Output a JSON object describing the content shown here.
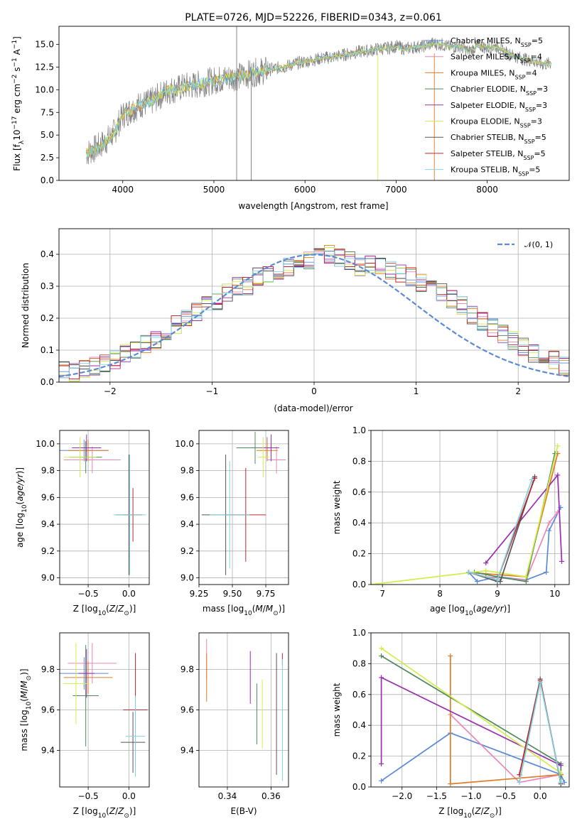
{
  "colors": {
    "Chabrier MILES": "#5b8ad6",
    "Salpeter MILES": "#e887b8",
    "Kroupa MILES": "#e07b27",
    "Chabrier ELODIE": "#4d8a5e",
    "Salpeter ELODIE": "#9b2db0",
    "Kroupa ELODIE": "#d4ec4a",
    "Chabrier STELIB": "#555555",
    "Salpeter STELIB": "#c0272d",
    "Kroupa STELIB": "#7fd3e0",
    "normal": "#5b8ad6",
    "data": "#808080"
  },
  "chart_data": [
    {
      "type": "line",
      "title": "PLATE=0726, MJD=52226, FIBERID=0343, z=0.061",
      "xlabel": "wavelength [Angstrom, rest frame]",
      "ylabel": "Flux [f",
      "xlim": [
        3300,
        8900
      ],
      "ylim": [
        0,
        17
      ],
      "xticks": [
        "4000",
        "5000",
        "6000",
        "7000",
        "8000"
      ],
      "yticks": [
        "0.0",
        "2.5",
        "5.0",
        "7.5",
        "10.0",
        "12.5",
        "15.0"
      ],
      "legend_position": "right",
      "legend": [
        {
          "name": "Chabrier MILES, N",
          "n": "=5"
        },
        {
          "name": "Salpeter MILES, N",
          "n": "=4"
        },
        {
          "name": "Kroupa MILES, N",
          "n": "=4"
        },
        {
          "name": "Chabrier ELODIE, N",
          "n": "=3"
        },
        {
          "name": "Salpeter ELODIE, N",
          "n": "=3"
        },
        {
          "name": "Kroupa ELODIE, N",
          "n": "=3"
        },
        {
          "name": "Chabrier STELIB, N",
          "n": "=5"
        },
        {
          "name": "Salpeter STELIB, N",
          "n": "=5"
        },
        {
          "name": "Kroupa STELIB, N",
          "n": "=5"
        }
      ],
      "legend_sub": "SSP",
      "spectrum_points": [
        [
          3600,
          3.0
        ],
        [
          3700,
          3.5
        ],
        [
          3800,
          4.2
        ],
        [
          3900,
          5.2
        ],
        [
          4000,
          7.2
        ],
        [
          4100,
          7.8
        ],
        [
          4200,
          8.4
        ],
        [
          4300,
          8.6
        ],
        [
          4400,
          9.3
        ],
        [
          4500,
          9.9
        ],
        [
          4600,
          10.1
        ],
        [
          4700,
          10.4
        ],
        [
          4800,
          10.5
        ],
        [
          4900,
          10.8
        ],
        [
          5000,
          11.0
        ],
        [
          5100,
          11.2
        ],
        [
          5200,
          11.4
        ],
        [
          5300,
          11.5
        ],
        [
          5400,
          11.8
        ],
        [
          5500,
          12.0
        ],
        [
          5600,
          12.2
        ],
        [
          5700,
          12.4
        ],
        [
          5800,
          12.6
        ],
        [
          5900,
          12.9
        ],
        [
          6000,
          13.1
        ],
        [
          6100,
          13.3
        ],
        [
          6200,
          13.5
        ],
        [
          6300,
          13.6
        ],
        [
          6400,
          13.8
        ],
        [
          6500,
          14.0
        ],
        [
          6600,
          14.2
        ],
        [
          6700,
          14.3
        ],
        [
          6800,
          14.5
        ],
        [
          6900,
          14.6
        ],
        [
          7000,
          14.8
        ],
        [
          7100,
          14.5
        ],
        [
          7200,
          14.7
        ],
        [
          7300,
          14.8
        ],
        [
          7400,
          15.1
        ],
        [
          7500,
          15.0
        ],
        [
          7600,
          14.7
        ],
        [
          7700,
          14.8
        ],
        [
          7800,
          14.2
        ],
        [
          7900,
          14.9
        ],
        [
          8000,
          14.6
        ],
        [
          8100,
          14.8
        ],
        [
          8200,
          14.1
        ],
        [
          8300,
          13.7
        ],
        [
          8400,
          13.4
        ],
        [
          8500,
          13.2
        ],
        [
          8600,
          12.8
        ],
        [
          8700,
          12.9
        ]
      ]
    },
    {
      "type": "bar",
      "xlabel": "(data-model)/error",
      "ylabel": "Normed distribution",
      "xlim": [
        -2.5,
        2.5
      ],
      "ylim": [
        0,
        0.48
      ],
      "xticks": [
        "−2",
        "−1",
        "0",
        "1",
        "2"
      ],
      "yticks": [
        "0.0",
        "0.1",
        "0.2",
        "0.3",
        "0.4"
      ],
      "legend": "𝒩(0, 1)",
      "bin_width": 0.1,
      "series": [
        {
          "key": "Chabrier MILES",
          "values": [
            0.04,
            0.03,
            0.04,
            0.05,
            0.06,
            0.07,
            0.09,
            0.1,
            0.12,
            0.13,
            0.16,
            0.18,
            0.2,
            0.22,
            0.24,
            0.25,
            0.28,
            0.3,
            0.3,
            0.33,
            0.34,
            0.35,
            0.36,
            0.37,
            0.38,
            0.39,
            0.4,
            0.39,
            0.38,
            0.36,
            0.37,
            0.36,
            0.35,
            0.34,
            0.33,
            0.31,
            0.3,
            0.28,
            0.26,
            0.24,
            0.21,
            0.19,
            0.17,
            0.15,
            0.13,
            0.11,
            0.09,
            0.08,
            0.07,
            0.05
          ]
        }
      ]
    },
    {
      "type": "scatter",
      "xlabel": "Z [log",
      "ylabel": "age  [log",
      "xlim": [
        -0.85,
        0.25
      ],
      "ylim": [
        8.95,
        10.1
      ],
      "xticks": [
        "−0.5",
        "0.0"
      ],
      "yticks": [
        "9.0",
        "9.2",
        "9.4",
        "9.6",
        "9.8",
        "10.0"
      ],
      "points": [
        {
          "key": "Chabrier MILES",
          "x": -0.55,
          "y": 9.95,
          "dx": 0.3,
          "dy": 0.08
        },
        {
          "key": "Salpeter MILES",
          "x": -0.45,
          "y": 9.88,
          "dx": 0.35,
          "dy": 0.1
        },
        {
          "key": "Kroupa MILES",
          "x": -0.5,
          "y": 9.95,
          "dx": 0.25,
          "dy": 0.08
        },
        {
          "key": "Chabrier ELODIE",
          "x": -0.53,
          "y": 9.9,
          "dx": 0.2,
          "dy": 0.12
        },
        {
          "key": "Salpeter ELODIE",
          "x": -0.52,
          "y": 9.97,
          "dx": 0.18,
          "dy": 0.1
        },
        {
          "key": "Kroupa ELODIE",
          "x": -0.6,
          "y": 9.9,
          "dx": 0.2,
          "dy": 0.15
        },
        {
          "key": "Chabrier STELIB",
          "x": 0.0,
          "y": 9.47,
          "dx": 0.16,
          "dy": 0.45
        },
        {
          "key": "Salpeter STELIB",
          "x": 0.05,
          "y": 9.47,
          "dx": 0.12,
          "dy": 0.2
        },
        {
          "key": "Kroupa STELIB",
          "x": 0.01,
          "y": 9.47,
          "dx": 0.2,
          "dy": 0.45
        }
      ]
    },
    {
      "type": "scatter",
      "xlabel": "mass [log",
      "ylabel": "",
      "xlim": [
        9.25,
        9.92
      ],
      "ylim": [
        8.95,
        10.1
      ],
      "xticks": [
        "9.25",
        "9.50",
        "9.75"
      ],
      "yticks": [
        "9.0",
        "9.2",
        "9.4",
        "9.6",
        "9.8",
        "10.0"
      ],
      "points": [
        {
          "key": "Chabrier MILES",
          "x": 9.76,
          "y": 9.97,
          "dx": 0.08,
          "dy": 0.08
        },
        {
          "key": "Salpeter MILES",
          "x": 9.83,
          "y": 9.88,
          "dx": 0.07,
          "dy": 0.1
        },
        {
          "key": "Kroupa MILES",
          "x": 9.76,
          "y": 9.95,
          "dx": 0.08,
          "dy": 0.08
        },
        {
          "key": "Chabrier ELODIE",
          "x": 9.67,
          "y": 9.97,
          "dx": 0.14,
          "dy": 0.12
        },
        {
          "key": "Salpeter ELODIE",
          "x": 9.79,
          "y": 9.97,
          "dx": 0.06,
          "dy": 0.1
        },
        {
          "key": "Kroupa ELODIE",
          "x": 9.73,
          "y": 9.9,
          "dx": 0.04,
          "dy": 0.15
        },
        {
          "key": "Chabrier STELIB",
          "x": 9.45,
          "y": 9.47,
          "dx": 0.18,
          "dy": 0.45
        },
        {
          "key": "Salpeter STELIB",
          "x": 9.6,
          "y": 9.47,
          "dx": 0.15,
          "dy": 0.35
        },
        {
          "key": "Kroupa STELIB",
          "x": 9.48,
          "y": 9.47,
          "dx": 0.15,
          "dy": 0.4
        }
      ]
    },
    {
      "type": "line",
      "xlabel": "age  [log",
      "ylabel": "mass weight",
      "xlim": [
        6.8,
        10.25
      ],
      "ylim": [
        0,
        1.0
      ],
      "xticks": [
        "7",
        "8",
        "9",
        "10"
      ],
      "yticks": [
        "0.0",
        "0.2",
        "0.4",
        "0.6",
        "0.8",
        "1.0"
      ],
      "series": [
        {
          "key": "Chabrier MILES",
          "x": [
            8.5,
            8.65,
            9.0,
            9.5,
            9.85,
            9.9,
            10.1
          ],
          "y": [
            0.08,
            0.02,
            0.05,
            0.03,
            0.08,
            0.35,
            0.5
          ]
        },
        {
          "key": "Salpeter MILES",
          "x": [
            8.5,
            8.8,
            9.5,
            9.9,
            10.05
          ],
          "y": [
            0.08,
            0.05,
            0.03,
            0.4,
            0.47
          ]
        },
        {
          "key": "Kroupa MILES",
          "x": [
            8.5,
            8.8,
            9.5,
            10.05
          ],
          "y": [
            0.08,
            0.07,
            0.05,
            0.85
          ]
        },
        {
          "key": "Chabrier ELODIE",
          "x": [
            8.6,
            9.0,
            9.5,
            10.0
          ],
          "y": [
            0.08,
            0.05,
            0.02,
            0.85
          ]
        },
        {
          "key": "Salpeter ELODIE",
          "x": [
            8.8,
            10.05,
            10.12
          ],
          "y": [
            0.14,
            0.71,
            0.15
          ]
        },
        {
          "key": "Kroupa ELODIE",
          "x": [
            6.8,
            8.8,
            9.5,
            10.05
          ],
          "y": [
            0.0,
            0.09,
            0.05,
            0.9
          ]
        },
        {
          "key": "Chabrier STELIB",
          "x": [
            8.5,
            9.0,
            9.05,
            9.65
          ],
          "y": [
            0.08,
            0.02,
            0.02,
            0.7
          ]
        },
        {
          "key": "Salpeter STELIB",
          "x": [
            8.5,
            9.0,
            9.65
          ],
          "y": [
            0.08,
            0.03,
            0.69
          ]
        },
        {
          "key": "Kroupa STELIB",
          "x": [
            8.5,
            9.0,
            9.6
          ],
          "y": [
            0.08,
            0.03,
            0.68
          ]
        }
      ]
    },
    {
      "type": "scatter",
      "xlabel": "Z [log",
      "ylabel": "mass [log",
      "xlim": [
        -0.85,
        0.25
      ],
      "ylim": [
        9.22,
        9.98
      ],
      "xticks": [
        "−0.5",
        "0.0"
      ],
      "yticks": [
        "9.4",
        "9.6",
        "9.8"
      ],
      "points": [
        {
          "key": "Chabrier MILES",
          "x": -0.55,
          "y": 9.78,
          "dx": 0.3,
          "dy": 0.08
        },
        {
          "key": "Salpeter MILES",
          "x": -0.45,
          "y": 9.83,
          "dx": 0.3,
          "dy": 0.1
        },
        {
          "key": "Kroupa MILES",
          "x": -0.5,
          "y": 9.76,
          "dx": 0.3,
          "dy": 0.08
        },
        {
          "key": "Chabrier ELODIE",
          "x": -0.53,
          "y": 9.67,
          "dx": 0.16,
          "dy": 0.25
        },
        {
          "key": "Salpeter ELODIE",
          "x": -0.52,
          "y": 9.78,
          "dx": 0.1,
          "dy": 0.12
        },
        {
          "key": "Kroupa ELODIE",
          "x": -0.65,
          "y": 9.73,
          "dx": 0.16,
          "dy": 0.2
        },
        {
          "key": "Chabrier STELIB",
          "x": 0.05,
          "y": 9.44,
          "dx": 0.15,
          "dy": 0.15
        },
        {
          "key": "Salpeter STELIB",
          "x": 0.08,
          "y": 9.6,
          "dx": 0.15,
          "dy": 0.28
        },
        {
          "key": "Kroupa STELIB",
          "x": 0.08,
          "y": 9.47,
          "dx": 0.12,
          "dy": 0.2
        }
      ]
    },
    {
      "type": "scatter",
      "xlabel": "E(B-V)",
      "ylabel": "",
      "xlim": [
        0.327,
        0.368
      ],
      "ylim": [
        9.22,
        9.98
      ],
      "xticks": [
        "0.34",
        "0.36"
      ],
      "yticks": [
        "9.4",
        "9.6",
        "9.8"
      ],
      "points": [
        {
          "key": "Salpeter MILES",
          "x": 0.3305,
          "y": 9.85,
          "dx": 0,
          "dy": 0.1
        },
        {
          "key": "Kroupa MILES",
          "x": 0.3305,
          "y": 9.76,
          "dx": 0,
          "dy": 0.12
        },
        {
          "key": "Salpeter ELODIE",
          "x": 0.3505,
          "y": 9.76,
          "dx": 0,
          "dy": 0.13
        },
        {
          "key": "Chabrier ELODIE",
          "x": 0.3535,
          "y": 9.58,
          "dx": 0,
          "dy": 0.15
        },
        {
          "key": "Kroupa ELODIE",
          "x": 0.356,
          "y": 9.58,
          "dx": 0,
          "dy": 0.17
        },
        {
          "key": "Chabrier STELIB",
          "x": 0.3625,
          "y": 9.58,
          "dx": 0,
          "dy": 0.3
        },
        {
          "key": "Salpeter STELIB",
          "x": 0.3652,
          "y": 9.85,
          "dx": 0,
          "dy": 0.03
        },
        {
          "key": "Kroupa STELIB",
          "x": 0.3652,
          "y": 9.55,
          "dx": 0,
          "dy": 0.3
        }
      ]
    },
    {
      "type": "line",
      "xlabel": "Z [log",
      "ylabel": "mass weight",
      "xlim": [
        -2.45,
        0.42
      ],
      "ylim": [
        0,
        1.0
      ],
      "xticks": [
        "−2.0",
        "−1.5",
        "−1.0",
        "−0.5",
        "0.0"
      ],
      "yticks": [
        "0.0",
        "0.2",
        "0.4",
        "0.6",
        "0.8",
        "1.0"
      ],
      "series": [
        {
          "key": "Chabrier MILES",
          "x": [
            -2.3,
            -1.3,
            0.3,
            0.35
          ],
          "y": [
            0.04,
            0.35,
            0.08,
            0.03
          ]
        },
        {
          "key": "Salpeter MILES",
          "x": [
            -1.3,
            -0.3,
            0.3
          ],
          "y": [
            0.47,
            0.03,
            0.08
          ]
        },
        {
          "key": "Kroupa MILES",
          "x": [
            -1.3,
            -1.3,
            0.3
          ],
          "y": [
            0.85,
            0.02,
            0.08
          ]
        },
        {
          "key": "Chabrier ELODIE",
          "x": [
            -2.3,
            0.3,
            0.3
          ],
          "y": [
            0.85,
            0.15,
            0.02
          ]
        },
        {
          "key": "Salpeter ELODIE",
          "x": [
            -2.3,
            -2.3,
            0.3
          ],
          "y": [
            0.15,
            0.71,
            0.14
          ]
        },
        {
          "key": "Kroupa ELODIE",
          "x": [
            -2.3,
            0.3
          ],
          "y": [
            0.9,
            0.09
          ]
        },
        {
          "key": "Chabrier STELIB",
          "x": [
            -0.3,
            0.0,
            0.3
          ],
          "y": [
            0.08,
            0.7,
            0.02
          ]
        },
        {
          "key": "Salpeter STELIB",
          "x": [
            -0.3,
            0.0,
            0.3
          ],
          "y": [
            0.08,
            0.69,
            0.03
          ]
        },
        {
          "key": "Kroupa STELIB",
          "x": [
            -0.3,
            0.0,
            0.3
          ],
          "y": [
            0.03,
            0.68,
            0.03
          ]
        }
      ]
    }
  ]
}
